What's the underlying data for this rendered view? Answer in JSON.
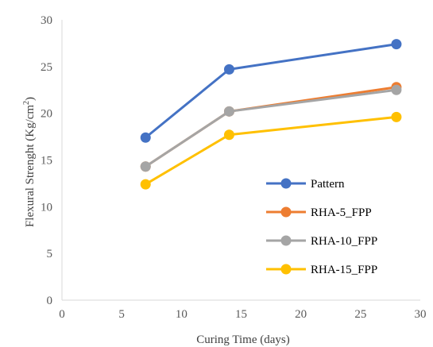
{
  "chart_data": {
    "type": "line",
    "title": "",
    "xlabel": "Curing Time (days)",
    "ylabel_main": "Flexural Strenght (Kg/cm",
    "ylabel_sup": "2",
    "ylabel_end": ")",
    "xlim": [
      0,
      30
    ],
    "ylim": [
      0,
      30
    ],
    "xticks": [
      0,
      5,
      10,
      15,
      20,
      25,
      30
    ],
    "yticks": [
      0,
      5,
      10,
      15,
      20,
      25,
      30
    ],
    "grid": false,
    "legend_position": "lower-right inside",
    "x": [
      7,
      14,
      28
    ],
    "series": [
      {
        "name": "Pattern",
        "values": [
          17.4,
          24.7,
          27.4
        ],
        "color": "#4472C4"
      },
      {
        "name": "RHA-5_FPP",
        "values": [
          14.3,
          20.2,
          22.8
        ],
        "color": "#ED7D31"
      },
      {
        "name": "RHA-10_FPP",
        "values": [
          14.3,
          20.2,
          22.5
        ],
        "color": "#A5A5A5"
      },
      {
        "name": "RHA-15_FPP",
        "values": [
          12.4,
          17.7,
          19.6
        ],
        "color": "#FFC000"
      }
    ]
  }
}
